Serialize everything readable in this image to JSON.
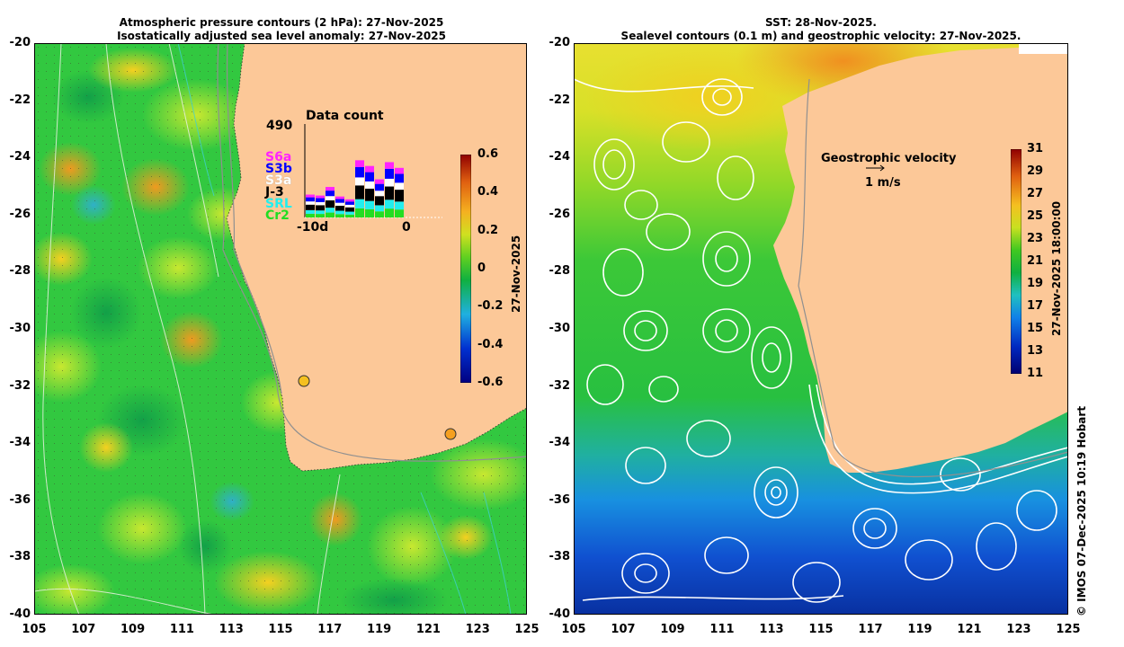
{
  "left_panel": {
    "title_line1": "Atmospheric pressure contours (2 hPa): 27-Nov-2025",
    "title_line2": "Isostatically adjusted sea level anomaly: 27-Nov-2025",
    "colorbar_label": "27-Nov-2025",
    "colorbar_ticks": [
      "0.6",
      "0.4",
      "0.2",
      "0",
      "-0.2",
      "-0.4",
      "-0.6"
    ],
    "colorbar_range": [
      -0.6,
      0.6
    ],
    "data_count": {
      "title": "Data count",
      "max_label": "490",
      "x_start_label": "-10d",
      "x_end_label": "0",
      "satellites": [
        {
          "name": "S6a",
          "color": "#ff22ff"
        },
        {
          "name": "S3b",
          "color": "#0000ff"
        },
        {
          "name": "S3a",
          "color": "#ffffff"
        },
        {
          "name": "J-3",
          "color": "#000000"
        },
        {
          "name": "SRL",
          "color": "#22eeee"
        },
        {
          "name": "Cr2",
          "color": "#22dd22"
        }
      ],
      "day_totals": [
        120,
        115,
        160,
        110,
        95,
        300,
        270,
        200,
        290,
        260
      ]
    }
  },
  "right_panel": {
    "title_line1": "SST: 28-Nov-2025.",
    "title_line2": "Sealevel contours (0.1 m) and geostrophic velocity: 27-Nov-2025.",
    "colorbar_label": "27-Nov-2025 18:00:00",
    "colorbar_ticks": [
      "31",
      "29",
      "27",
      "25",
      "23",
      "21",
      "19",
      "17",
      "15",
      "13",
      "11"
    ],
    "colorbar_range": [
      11,
      31
    ],
    "velocity_title": "Geostrophic velocity",
    "velocity_scale": "1 m/s"
  },
  "axes": {
    "longitude_ticks": [
      "105",
      "107",
      "109",
      "111",
      "113",
      "115",
      "117",
      "119",
      "121",
      "123",
      "125"
    ],
    "latitude_ticks": [
      "-20",
      "-22",
      "-24",
      "-26",
      "-28",
      "-30",
      "-32",
      "-34",
      "-36",
      "-38",
      "-40"
    ]
  },
  "credit": "© IMOS 07-Dec-2025 10:19 Hobart",
  "colors": {
    "land": "#fcc898",
    "ssh_low": "#00208a",
    "ssh_mid": "#22c83a",
    "ssh_high": "#b02000",
    "sst_warm": "#f08020",
    "sst_cold": "#0030a0"
  }
}
